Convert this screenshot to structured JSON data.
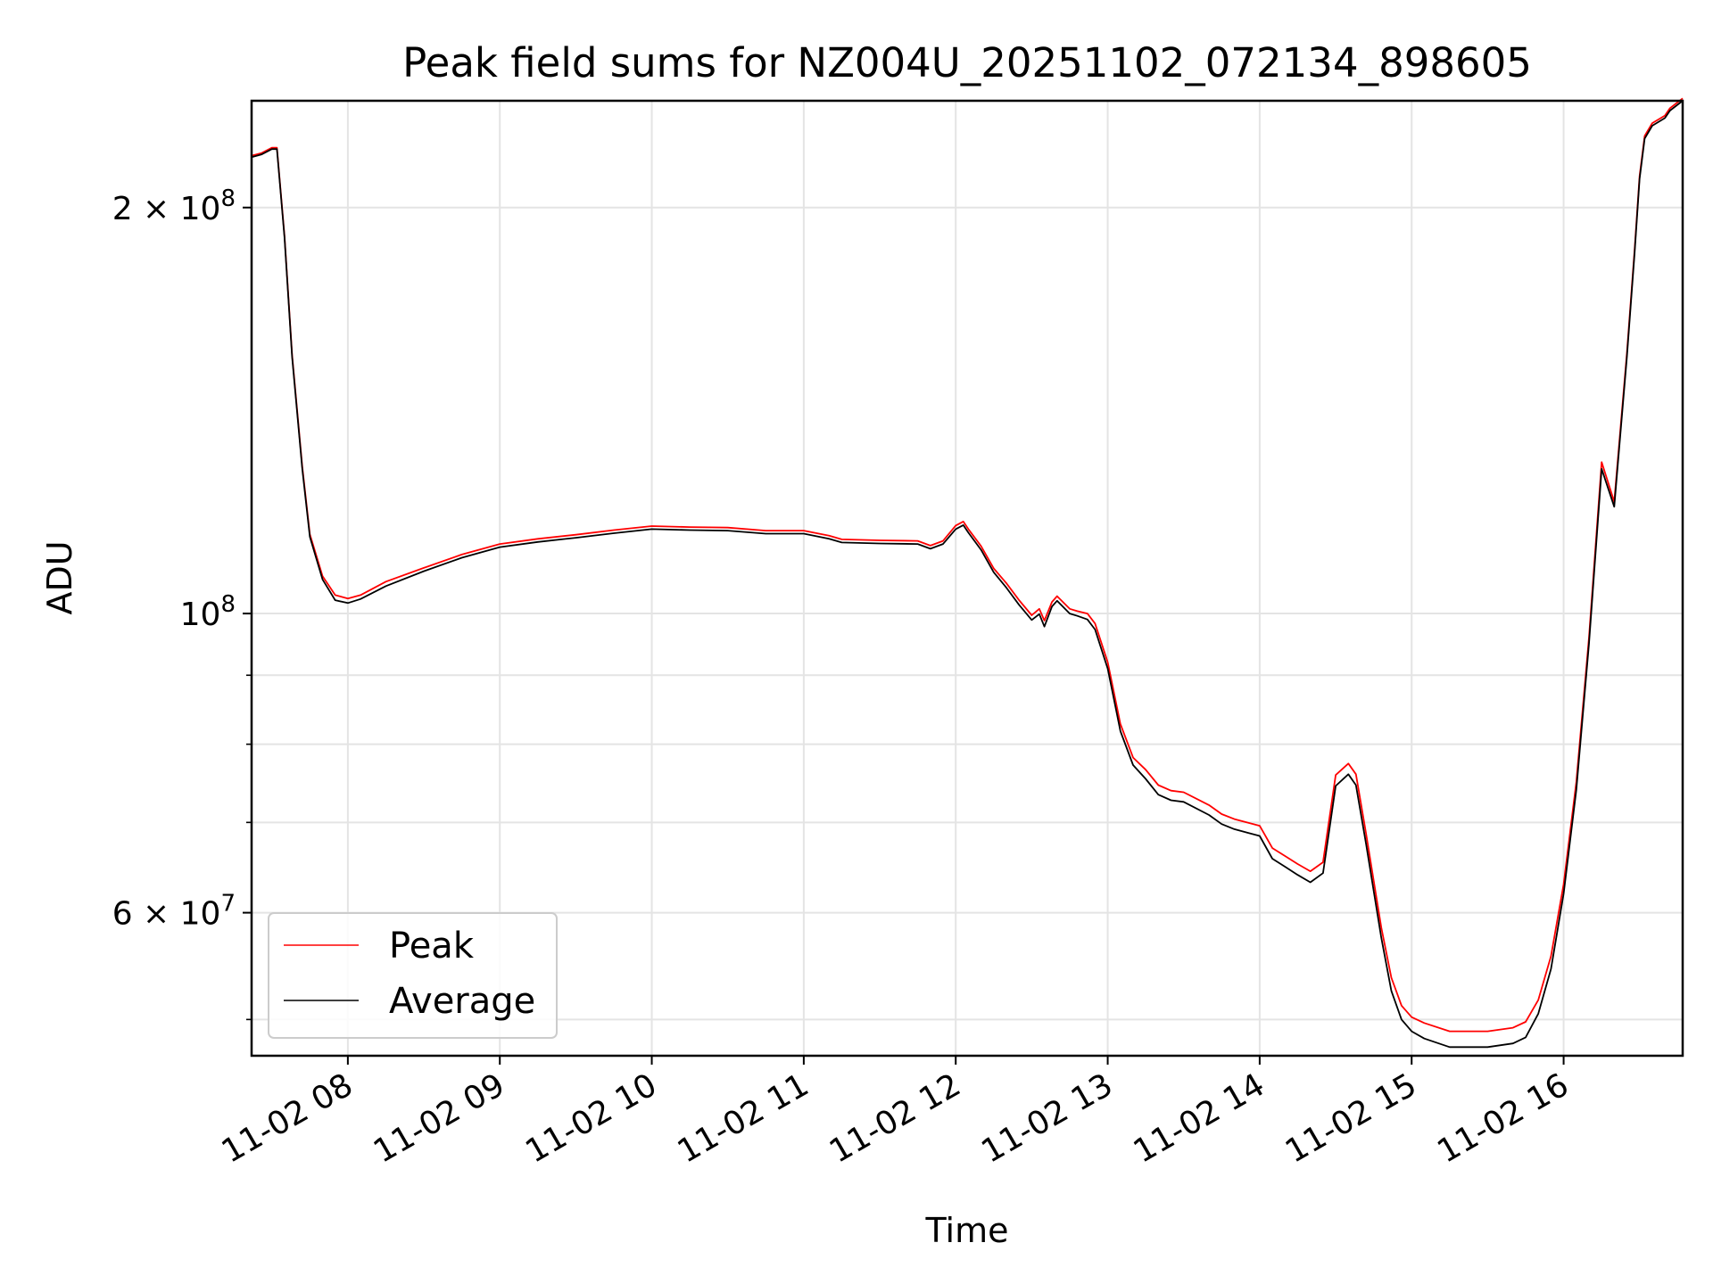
{
  "chart_data": {
    "type": "line",
    "title": "Peak field sums for NZ004U_20251102_072134_898605",
    "xlabel": "Time",
    "ylabel": "ADU",
    "yscale": "log",
    "xlim": [
      "2025-11-02 07:22",
      "2025-11-02 16:47"
    ],
    "ylim": [
      47000000,
      240000000
    ],
    "x_ticks": [
      "11-02 08",
      "11-02 09",
      "11-02 10",
      "11-02 11",
      "11-02 12",
      "11-02 13",
      "11-02 14",
      "11-02 15",
      "11-02 16"
    ],
    "y_ticks_major": [
      {
        "value": 60000000,
        "label": "6 × 10^7",
        "mant": "6",
        "exp": "7"
      },
      {
        "value": 100000000,
        "label": "10^8",
        "mant": "",
        "exp": "8"
      },
      {
        "value": 200000000,
        "label": "2 × 10^8",
        "mant": "2",
        "exp": "8"
      }
    ],
    "y_ticks_minor": [
      50000000,
      70000000,
      80000000,
      90000000
    ],
    "grid": true,
    "legend": {
      "position": "lower-left",
      "entries": [
        "Peak",
        "Average"
      ]
    },
    "series": [
      {
        "name": "Average",
        "color": "#000000",
        "x": [
          "07:22",
          "07:26",
          "07:30",
          "07:32",
          "07:35",
          "07:38",
          "07:42",
          "07:45",
          "07:50",
          "07:55",
          "08:00",
          "08:05",
          "08:15",
          "08:30",
          "08:45",
          "09:00",
          "09:15",
          "09:30",
          "09:45",
          "10:00",
          "10:15",
          "10:30",
          "10:45",
          "11:00",
          "11:10",
          "11:15",
          "11:30",
          "11:45",
          "11:50",
          "11:55",
          "12:00",
          "12:03",
          "12:05",
          "12:10",
          "12:15",
          "12:20",
          "12:25",
          "12:30",
          "12:33",
          "12:35",
          "12:38",
          "12:40",
          "12:45",
          "12:48",
          "12:52",
          "12:55",
          "13:00",
          "13:05",
          "13:10",
          "13:15",
          "13:20",
          "13:25",
          "13:30",
          "13:40",
          "13:45",
          "13:50",
          "14:00",
          "14:05",
          "14:10",
          "14:15",
          "14:20",
          "14:25",
          "14:30",
          "14:35",
          "14:38",
          "14:42",
          "14:48",
          "14:52",
          "14:56",
          "15:00",
          "15:05",
          "15:15",
          "15:30",
          "15:40",
          "15:45",
          "15:50",
          "15:55",
          "16:00",
          "16:05",
          "16:10",
          "16:15",
          "16:20",
          "16:25",
          "16:28",
          "16:30",
          "16:32",
          "16:35",
          "16:40",
          "16:42",
          "16:47"
        ],
        "y": [
          218000000,
          219000000,
          221000000,
          221000000,
          190000000,
          155000000,
          128000000,
          114000000,
          106000000,
          102300000,
          101800000,
          102500000,
          104800000,
          107500000,
          110000000,
          112000000,
          113000000,
          113800000,
          114700000,
          115500000,
          115300000,
          115200000,
          114600000,
          114600000,
          113600000,
          112900000,
          112700000,
          112600000,
          111700000,
          112600000,
          115500000,
          116300000,
          114800000,
          111500000,
          107300000,
          104500000,
          101500000,
          98900000,
          99900000,
          97800000,
          101200000,
          102200000,
          100000000,
          99600000,
          99000000,
          97300000,
          91000000,
          81800000,
          77200000,
          75400000,
          73400000,
          72700000,
          72500000,
          70900000,
          69800000,
          69200000,
          68400000,
          65800000,
          64900000,
          64000000,
          63200000,
          64200000,
          74500000,
          76000000,
          74600000,
          67500000,
          57500000,
          52500000,
          50000000,
          49000000,
          48400000,
          47700000,
          47700000,
          48000000,
          48500000,
          50500000,
          54500000,
          62000000,
          74000000,
          95000000,
          128000000,
          120000000,
          155000000,
          185000000,
          210000000,
          225000000,
          230000000,
          233000000,
          236000000,
          240000000
        ]
      },
      {
        "name": "Peak",
        "color": "#ff0000",
        "x": [
          "07:22",
          "07:26",
          "07:30",
          "07:32",
          "07:35",
          "07:38",
          "07:42",
          "07:45",
          "07:50",
          "07:55",
          "08:00",
          "08:05",
          "08:15",
          "08:30",
          "08:45",
          "09:00",
          "09:15",
          "09:30",
          "09:45",
          "10:00",
          "10:15",
          "10:30",
          "10:45",
          "11:00",
          "11:10",
          "11:15",
          "11:30",
          "11:45",
          "11:50",
          "11:55",
          "12:00",
          "12:03",
          "12:05",
          "12:10",
          "12:15",
          "12:20",
          "12:25",
          "12:30",
          "12:33",
          "12:35",
          "12:38",
          "12:40",
          "12:45",
          "12:48",
          "12:52",
          "12:55",
          "13:00",
          "13:05",
          "13:10",
          "13:15",
          "13:20",
          "13:25",
          "13:30",
          "13:40",
          "13:45",
          "13:50",
          "14:00",
          "14:05",
          "14:10",
          "14:15",
          "14:20",
          "14:25",
          "14:30",
          "14:35",
          "14:38",
          "14:42",
          "14:48",
          "14:52",
          "14:56",
          "15:00",
          "15:05",
          "15:15",
          "15:30",
          "15:40",
          "15:45",
          "15:50",
          "15:55",
          "16:00",
          "16:05",
          "16:10",
          "16:15",
          "16:20",
          "16:25",
          "16:28",
          "16:30",
          "16:32",
          "16:35",
          "16:40",
          "16:42",
          "16:47"
        ],
        "y": [
          218500000,
          219500000,
          221500000,
          221500000,
          190500000,
          155500000,
          128500000,
          114500000,
          106600000,
          103200000,
          102600000,
          103200000,
          105600000,
          108100000,
          110600000,
          112600000,
          113600000,
          114400000,
          115300000,
          116100000,
          115900000,
          115800000,
          115200000,
          115200000,
          114200000,
          113500000,
          113300000,
          113200000,
          112300000,
          113200000,
          116200000,
          117000000,
          115500000,
          112200000,
          108000000,
          105300000,
          102300000,
          99700000,
          100800000,
          98800000,
          102000000,
          103000000,
          100800000,
          100400000,
          100000000,
          98300000,
          92000000,
          82800000,
          78200000,
          76600000,
          74600000,
          73900000,
          73700000,
          72100000,
          71000000,
          70400000,
          69600000,
          67000000,
          66100000,
          65200000,
          64400000,
          65400000,
          75900000,
          77400000,
          76000000,
          68700000,
          58500000,
          53700000,
          51200000,
          50200000,
          49700000,
          49000000,
          49000000,
          49300000,
          49800000,
          51700000,
          55700000,
          63000000,
          75000000,
          96000000,
          129500000,
          121000000,
          156000000,
          186000000,
          211000000,
          226000000,
          231000000,
          234000000,
          237000000,
          241000000
        ]
      }
    ]
  }
}
